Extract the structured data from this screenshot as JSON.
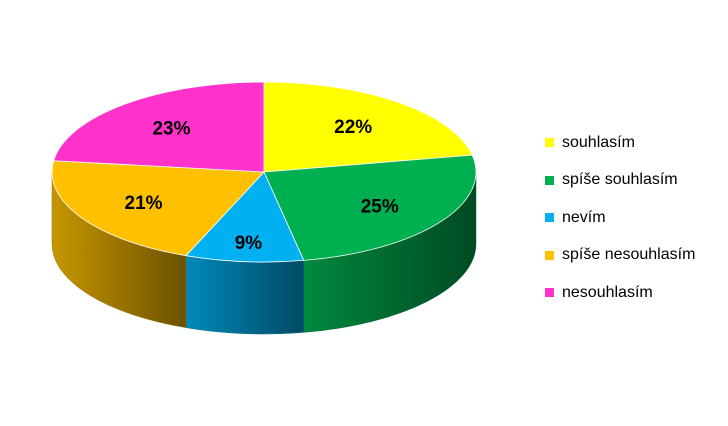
{
  "chart_data": {
    "type": "pie",
    "style": "3d",
    "title": "",
    "categories": [
      "souhlasím",
      "spíše souhlasím",
      "nevím",
      "spíše nesouhlasím",
      "nesouhlasím"
    ],
    "values": [
      22,
      25,
      9,
      21,
      23
    ],
    "labels": [
      "22%",
      "25%",
      "9%",
      "21%",
      "23%"
    ],
    "colors": [
      "#ffff00",
      "#00b050",
      "#00b0f0",
      "#ffc000",
      "#ff33cc"
    ],
    "legend_position": "right"
  }
}
